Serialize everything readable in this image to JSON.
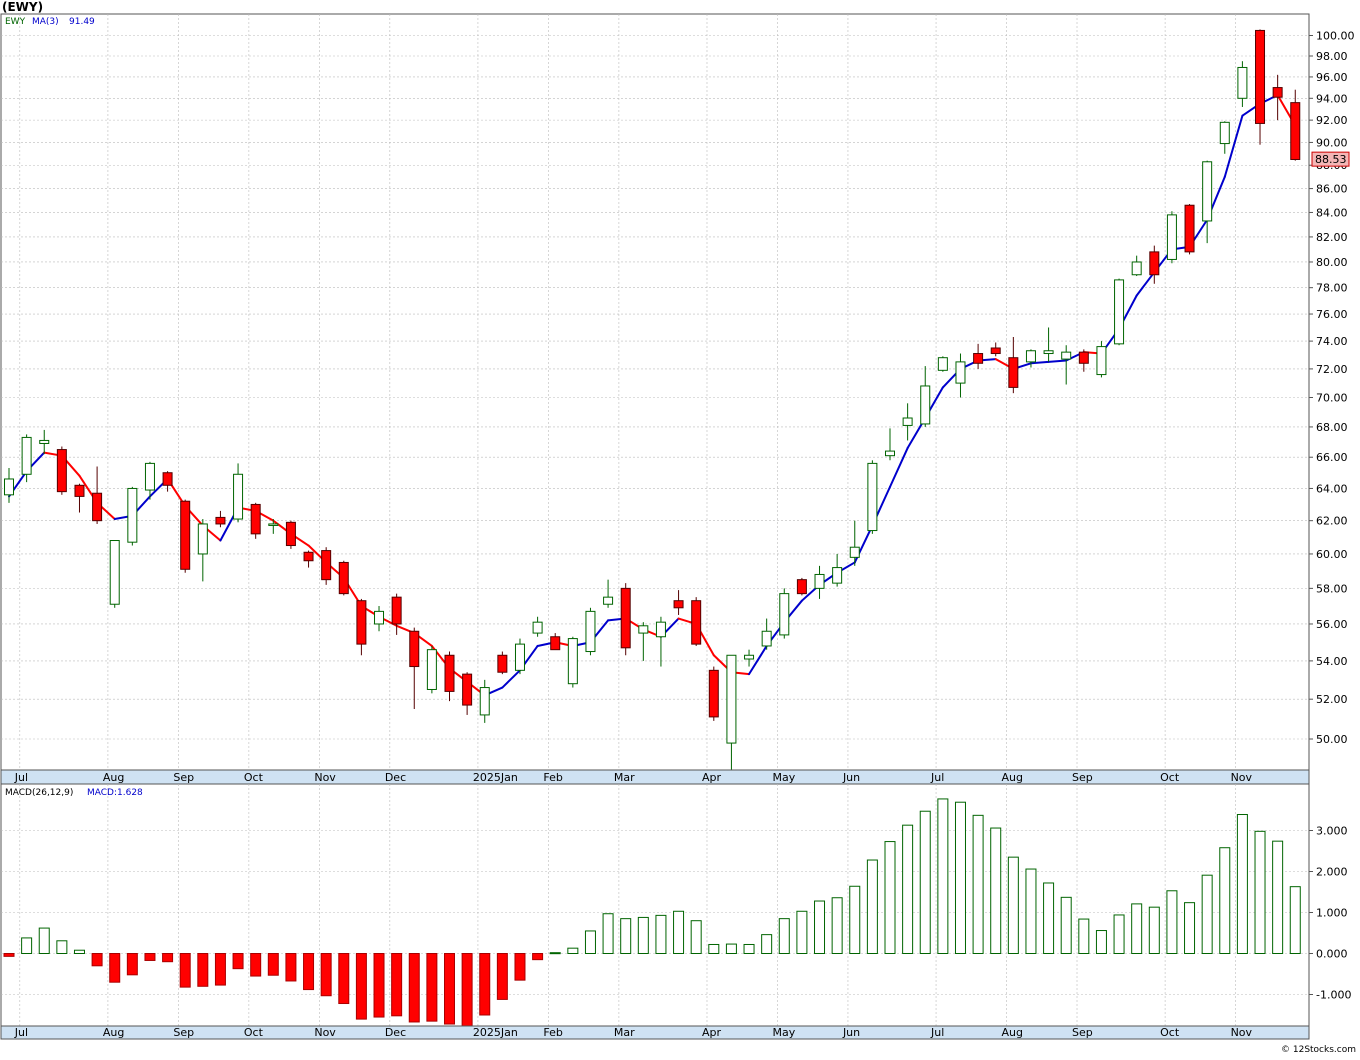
{
  "header": {
    "symbol": "(EWY)"
  },
  "price_panel": {
    "label": "EWY",
    "ma_label": "MA(3)",
    "ma_value": "91.49",
    "last_price": "88.53"
  },
  "macd_panel": {
    "label": "MACD(26,12,9)",
    "macd_label": "MACD:",
    "macd_value": "1.628"
  },
  "watermark": "© 12Stocks.com",
  "colors": {
    "up": "#006400",
    "down": "#ff0000",
    "ma_up": "#0000cc",
    "ma_down": "#ff0000",
    "axis_band": "#cfe2f3",
    "grid": "#bbbbbb",
    "last_price_bg": "#f4b6b6"
  },
  "chart_data": [
    {
      "type": "candlestick",
      "title": "(EWY)",
      "y_ticks": [
        "50.00",
        "52.00",
        "54.00",
        "56.00",
        "58.00",
        "60.00",
        "62.00",
        "64.00",
        "66.00",
        "68.00",
        "70.00",
        "72.00",
        "74.00",
        "76.00",
        "78.00",
        "80.00",
        "82.00",
        "84.00",
        "86.00",
        "88.00",
        "90.00",
        "92.00",
        "94.00",
        "96.00",
        "98.00",
        "100.00"
      ],
      "ylim": [
        48.3,
        101.5
      ],
      "x_month_labels": [
        {
          "label": "Jul",
          "week": 1
        },
        {
          "label": "Aug",
          "week": 6
        },
        {
          "label": "Sep",
          "week": 10
        },
        {
          "label": "Oct",
          "week": 14
        },
        {
          "label": "Nov",
          "week": 18
        },
        {
          "label": "Dec",
          "week": 22
        },
        {
          "label": "2025Jan",
          "week": 27
        },
        {
          "label": "Feb",
          "week": 31
        },
        {
          "label": "Mar",
          "week": 35
        },
        {
          "label": "Apr",
          "week": 40
        },
        {
          "label": "May",
          "week": 44
        },
        {
          "label": "Jun",
          "week": 48
        },
        {
          "label": "Jul",
          "week": 53
        },
        {
          "label": "Aug",
          "week": 57
        },
        {
          "label": "Sep",
          "week": 61
        },
        {
          "label": "Oct",
          "week": 66
        },
        {
          "label": "Nov",
          "week": 70
        }
      ],
      "candles": [
        {
          "o": 63.6,
          "h": 65.3,
          "l": 63.1,
          "c": 64.6
        },
        {
          "o": 64.9,
          "h": 67.5,
          "l": 64.4,
          "c": 67.3
        },
        {
          "o": 66.9,
          "h": 67.8,
          "l": 66.2,
          "c": 67.1
        },
        {
          "o": 66.5,
          "h": 66.7,
          "l": 63.6,
          "c": 63.8
        },
        {
          "o": 64.2,
          "h": 64.3,
          "l": 62.5,
          "c": 63.5
        },
        {
          "o": 63.7,
          "h": 65.4,
          "l": 61.8,
          "c": 62.0
        },
        {
          "o": 57.1,
          "h": 60.8,
          "l": 56.9,
          "c": 60.8
        },
        {
          "o": 60.7,
          "h": 64.1,
          "l": 60.5,
          "c": 64.0
        },
        {
          "o": 63.9,
          "h": 65.7,
          "l": 63.3,
          "c": 65.6
        },
        {
          "o": 65.0,
          "h": 65.1,
          "l": 63.8,
          "c": 64.2
        },
        {
          "o": 63.2,
          "h": 63.3,
          "l": 58.9,
          "c": 59.1
        },
        {
          "o": 60.0,
          "h": 62.1,
          "l": 58.4,
          "c": 61.8
        },
        {
          "o": 62.2,
          "h": 62.6,
          "l": 61.6,
          "c": 61.8
        },
        {
          "o": 62.1,
          "h": 65.6,
          "l": 61.9,
          "c": 64.9
        },
        {
          "o": 63.0,
          "h": 63.1,
          "l": 60.9,
          "c": 61.2
        },
        {
          "o": 61.8,
          "h": 62.1,
          "l": 61.2,
          "c": 61.8
        },
        {
          "o": 61.9,
          "h": 62.0,
          "l": 60.3,
          "c": 60.5
        },
        {
          "o": 60.1,
          "h": 60.2,
          "l": 59.2,
          "c": 59.6
        },
        {
          "o": 60.2,
          "h": 60.4,
          "l": 58.2,
          "c": 58.5
        },
        {
          "o": 59.5,
          "h": 59.6,
          "l": 57.6,
          "c": 57.7
        },
        {
          "o": 57.3,
          "h": 57.4,
          "l": 54.3,
          "c": 54.9
        },
        {
          "o": 56.0,
          "h": 57.0,
          "l": 55.6,
          "c": 56.7
        },
        {
          "o": 57.5,
          "h": 57.7,
          "l": 55.4,
          "c": 56.0
        },
        {
          "o": 55.6,
          "h": 55.8,
          "l": 51.5,
          "c": 53.7
        },
        {
          "o": 52.5,
          "h": 54.8,
          "l": 52.3,
          "c": 54.6
        },
        {
          "o": 54.3,
          "h": 54.5,
          "l": 51.9,
          "c": 52.4
        },
        {
          "o": 53.3,
          "h": 53.4,
          "l": 51.2,
          "c": 51.7
        },
        {
          "o": 51.2,
          "h": 53.0,
          "l": 50.8,
          "c": 52.6
        },
        {
          "o": 54.3,
          "h": 54.5,
          "l": 53.3,
          "c": 53.4
        },
        {
          "o": 53.5,
          "h": 55.2,
          "l": 53.3,
          "c": 54.9
        },
        {
          "o": 55.5,
          "h": 56.4,
          "l": 55.3,
          "c": 56.1
        },
        {
          "o": 55.3,
          "h": 55.5,
          "l": 54.6,
          "c": 54.6
        },
        {
          "o": 52.8,
          "h": 55.3,
          "l": 52.6,
          "c": 55.2
        },
        {
          "o": 54.5,
          "h": 56.9,
          "l": 54.3,
          "c": 56.7
        },
        {
          "o": 57.1,
          "h": 58.5,
          "l": 56.9,
          "c": 57.5
        },
        {
          "o": 58.0,
          "h": 58.3,
          "l": 54.3,
          "c": 54.7
        },
        {
          "o": 55.5,
          "h": 56.1,
          "l": 54.0,
          "c": 55.9
        },
        {
          "o": 55.3,
          "h": 56.4,
          "l": 53.7,
          "c": 56.1
        },
        {
          "o": 57.3,
          "h": 57.9,
          "l": 56.5,
          "c": 56.9
        },
        {
          "o": 57.3,
          "h": 57.5,
          "l": 54.8,
          "c": 54.9
        },
        {
          "o": 53.5,
          "h": 53.7,
          "l": 50.9,
          "c": 51.1
        },
        {
          "o": 49.8,
          "h": 54.3,
          "l": 48.3,
          "c": 54.3
        },
        {
          "o": 54.1,
          "h": 54.6,
          "l": 53.7,
          "c": 54.3
        },
        {
          "o": 54.8,
          "h": 56.3,
          "l": 54.6,
          "c": 55.6
        },
        {
          "o": 55.4,
          "h": 58.0,
          "l": 55.2,
          "c": 57.7
        },
        {
          "o": 58.5,
          "h": 58.6,
          "l": 57.6,
          "c": 57.7
        },
        {
          "o": 58.0,
          "h": 59.3,
          "l": 57.4,
          "c": 58.8
        },
        {
          "o": 58.3,
          "h": 60.0,
          "l": 58.1,
          "c": 59.2
        },
        {
          "o": 59.8,
          "h": 62.0,
          "l": 59.3,
          "c": 60.4
        },
        {
          "o": 61.4,
          "h": 65.8,
          "l": 61.2,
          "c": 65.6
        },
        {
          "o": 66.1,
          "h": 67.9,
          "l": 65.8,
          "c": 66.4
        },
        {
          "o": 68.1,
          "h": 69.6,
          "l": 67.1,
          "c": 68.6
        },
        {
          "o": 68.2,
          "h": 72.2,
          "l": 68.0,
          "c": 70.8
        },
        {
          "o": 71.9,
          "h": 72.9,
          "l": 71.8,
          "c": 72.8
        },
        {
          "o": 71.0,
          "h": 73.1,
          "l": 70.0,
          "c": 72.5
        },
        {
          "o": 73.1,
          "h": 73.8,
          "l": 72.0,
          "c": 72.4
        },
        {
          "o": 73.5,
          "h": 73.9,
          "l": 72.9,
          "c": 73.1
        },
        {
          "o": 72.8,
          "h": 74.3,
          "l": 70.3,
          "c": 70.7
        },
        {
          "o": 72.5,
          "h": 73.4,
          "l": 72.1,
          "c": 73.3
        },
        {
          "o": 73.1,
          "h": 75.0,
          "l": 72.5,
          "c": 73.3
        },
        {
          "o": 72.7,
          "h": 73.7,
          "l": 70.9,
          "c": 73.2
        },
        {
          "o": 73.2,
          "h": 73.4,
          "l": 71.8,
          "c": 72.4
        },
        {
          "o": 71.6,
          "h": 74.0,
          "l": 71.4,
          "c": 73.6
        },
        {
          "o": 73.8,
          "h": 78.7,
          "l": 73.7,
          "c": 78.6
        },
        {
          "o": 79.0,
          "h": 80.5,
          "l": 78.9,
          "c": 80.0
        },
        {
          "o": 80.8,
          "h": 81.3,
          "l": 78.3,
          "c": 79.0
        },
        {
          "o": 80.2,
          "h": 84.1,
          "l": 79.9,
          "c": 83.8
        },
        {
          "o": 84.6,
          "h": 84.7,
          "l": 80.6,
          "c": 80.8
        },
        {
          "o": 83.3,
          "h": 88.4,
          "l": 81.5,
          "c": 88.3
        },
        {
          "o": 89.9,
          "h": 91.9,
          "l": 89.0,
          "c": 91.8
        },
        {
          "o": 94.0,
          "h": 97.5,
          "l": 93.2,
          "c": 96.9
        },
        {
          "o": 100.5,
          "h": 100.6,
          "l": 89.8,
          "c": 91.7
        },
        {
          "o": 95.0,
          "h": 96.2,
          "l": 92.0,
          "c": 94.1
        },
        {
          "o": 93.6,
          "h": 94.8,
          "l": 88.4,
          "c": 88.5
        }
      ],
      "ma3": [
        63.5,
        65.1,
        66.3,
        66.1,
        64.8,
        63.1,
        62.1,
        62.3,
        63.5,
        64.6,
        62.9,
        61.7,
        60.8,
        62.8,
        62.6,
        62.0,
        61.2,
        60.5,
        59.5,
        58.6,
        57.0,
        56.4,
        55.9,
        55.5,
        54.8,
        53.6,
        52.9,
        52.2,
        52.6,
        53.5,
        54.8,
        55.0,
        54.8,
        55.0,
        56.2,
        56.3,
        55.7,
        55.3,
        56.3,
        56.0,
        54.3,
        53.4,
        53.3,
        54.8,
        56.1,
        57.3,
        58.2,
        58.9,
        59.5,
        61.7,
        64.1,
        66.6,
        68.6,
        70.7,
        72.0,
        72.6,
        72.7,
        72.0,
        72.4,
        72.5,
        72.6,
        73.2,
        73.1,
        74.9,
        77.4,
        79.2,
        81.0,
        81.2,
        83.4,
        87.0,
        92.4,
        93.5,
        94.3,
        91.5
      ]
    },
    {
      "type": "bar",
      "title": "MACD(26,12,9)",
      "y_ticks": [
        "-1.000",
        "0.000",
        "1.000",
        "2.000",
        "3.000"
      ],
      "ylim": [
        -1.75,
        3.85
      ],
      "values": [
        -0.07,
        0.38,
        0.62,
        0.31,
        0.08,
        -0.3,
        -0.7,
        -0.52,
        -0.17,
        -0.2,
        -0.82,
        -0.8,
        -0.77,
        -0.37,
        -0.55,
        -0.53,
        -0.67,
        -0.88,
        -1.03,
        -1.22,
        -1.6,
        -1.55,
        -1.52,
        -1.67,
        -1.65,
        -1.72,
        -1.78,
        -1.5,
        -1.12,
        -0.65,
        -0.15,
        0.02,
        0.13,
        0.55,
        0.97,
        0.85,
        0.88,
        0.93,
        1.03,
        0.8,
        0.22,
        0.23,
        0.22,
        0.46,
        0.85,
        1.03,
        1.28,
        1.36,
        1.64,
        2.28,
        2.73,
        3.13,
        3.47,
        3.77,
        3.69,
        3.37,
        3.06,
        2.35,
        2.06,
        1.72,
        1.37,
        0.84,
        0.56,
        0.94,
        1.21,
        1.13,
        1.53,
        1.24,
        1.91,
        2.58,
        3.39,
        2.98,
        2.74,
        1.63
      ]
    }
  ]
}
